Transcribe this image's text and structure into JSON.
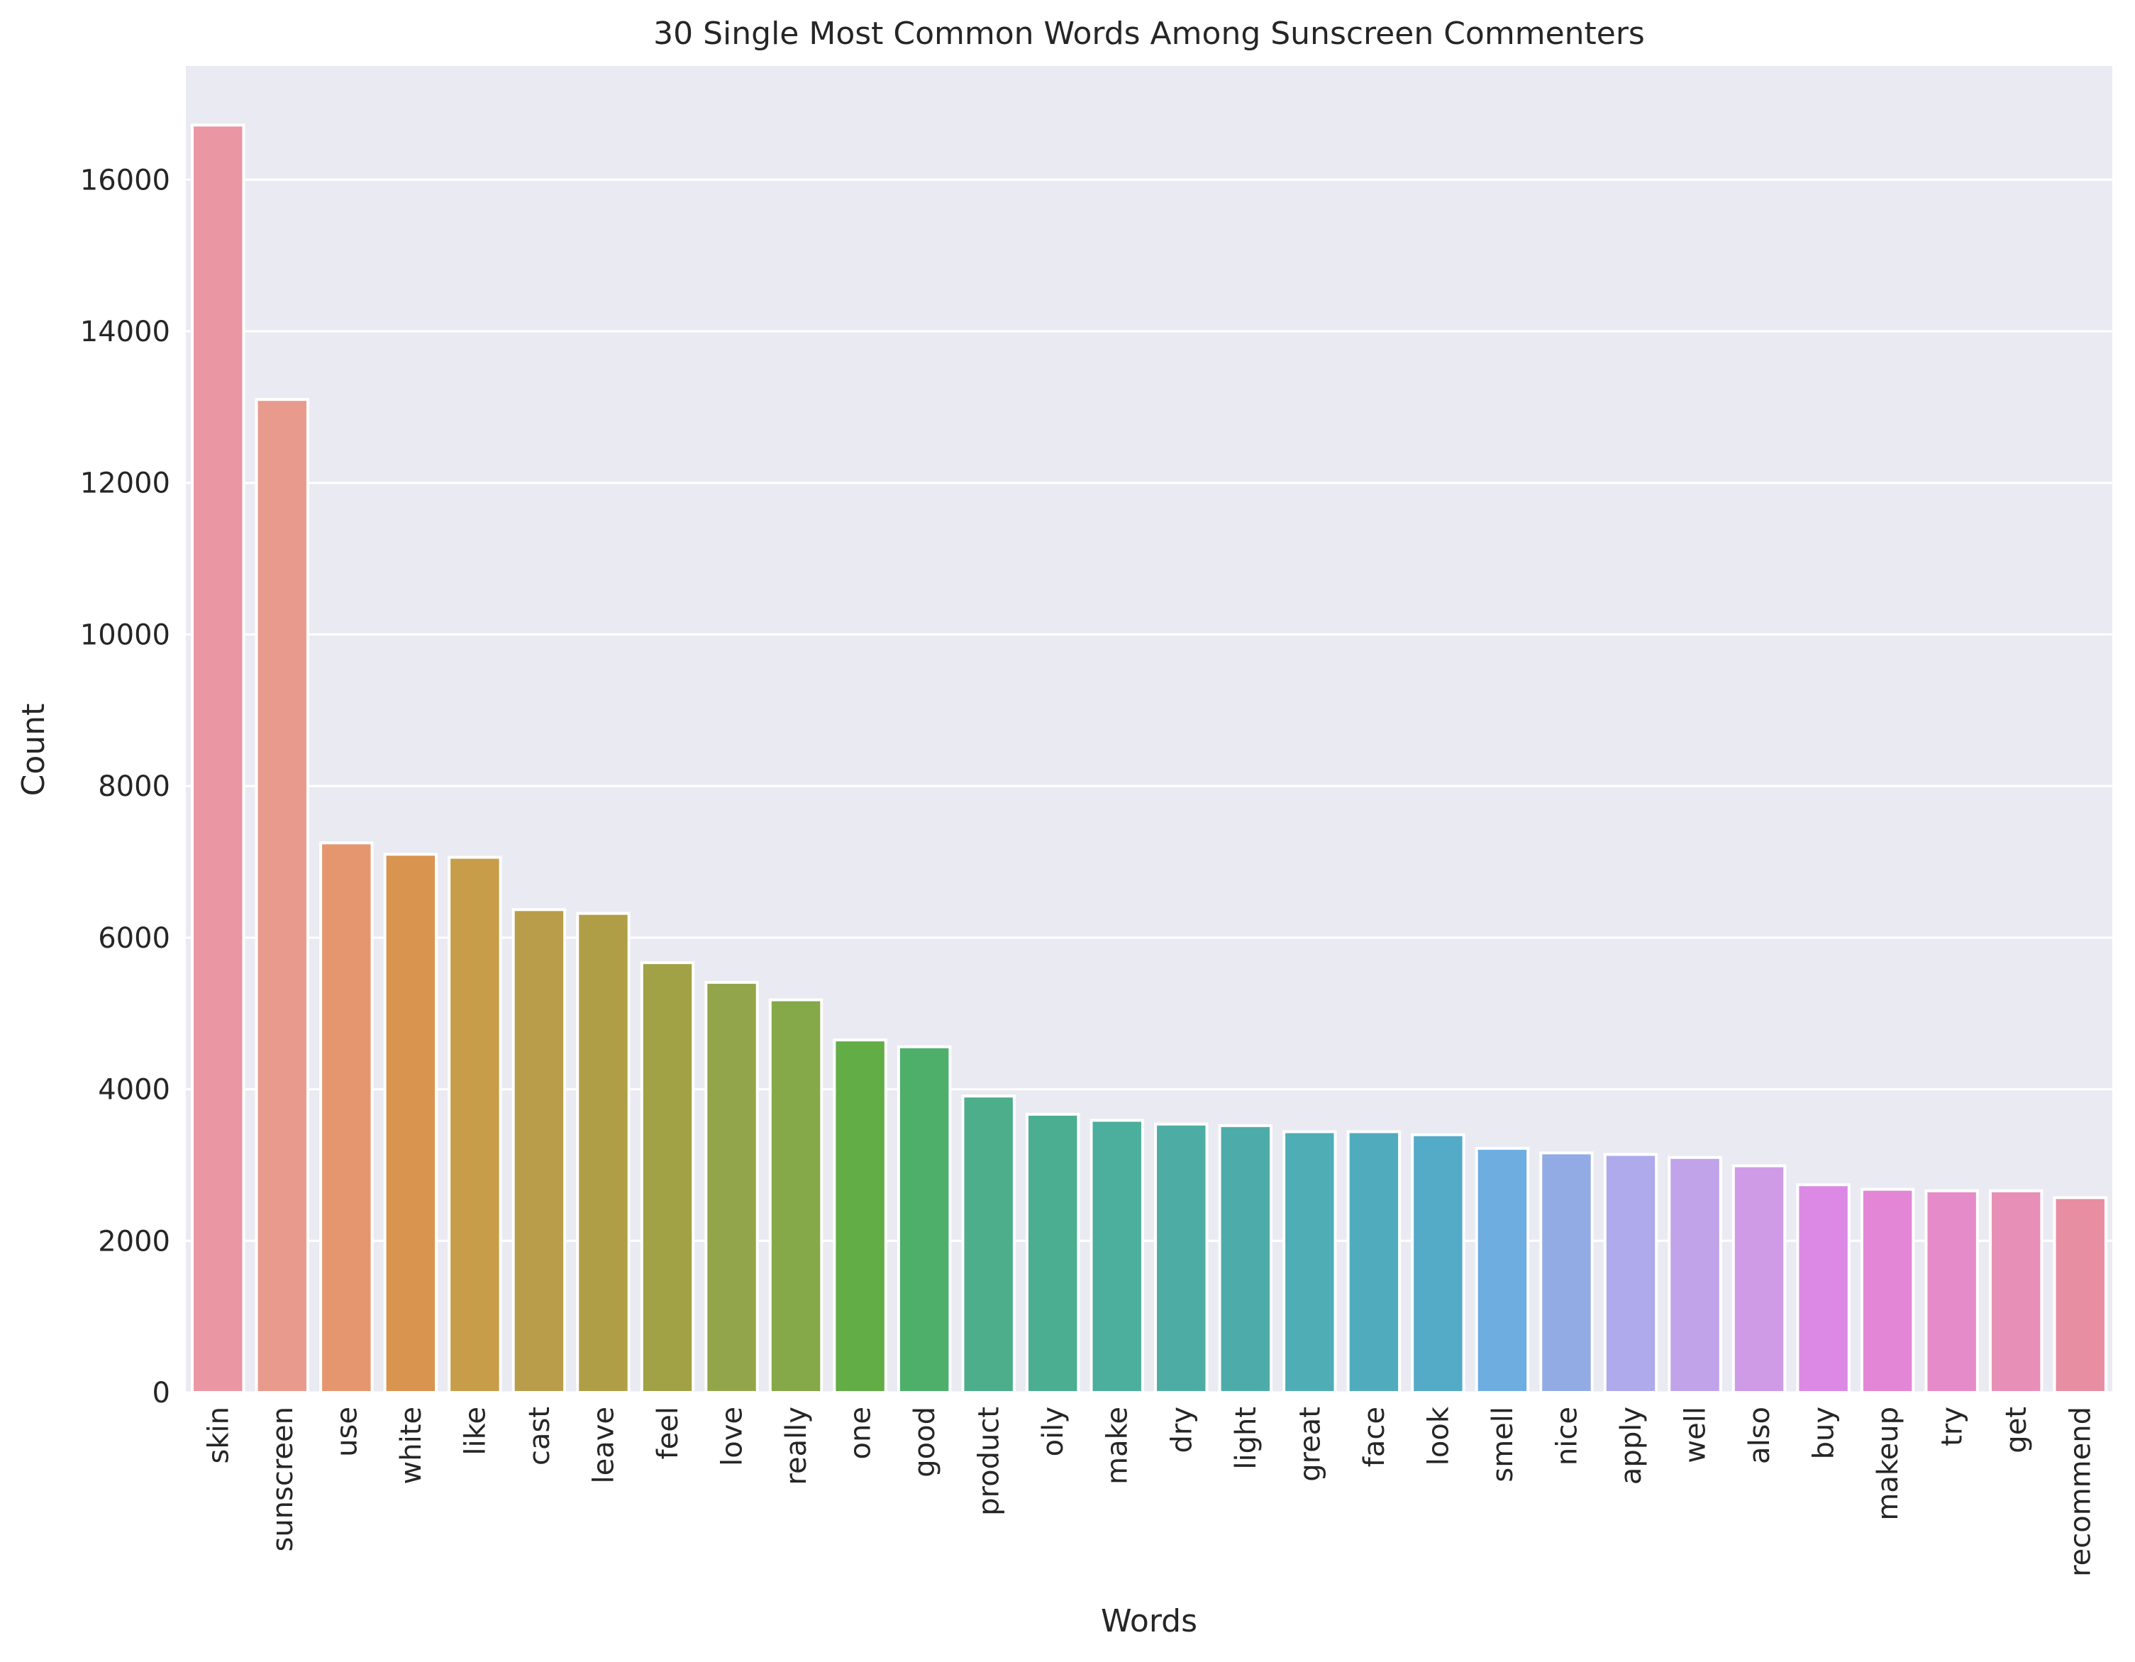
{
  "chart_data": {
    "type": "bar",
    "title": "30 Single Most Common Words Among Sunscreen Commenters",
    "xlabel": "Words",
    "ylabel": "Count",
    "ylim": [
      0,
      17500
    ],
    "yticks": [
      0,
      2000,
      4000,
      6000,
      8000,
      10000,
      12000,
      14000,
      16000
    ],
    "grid": true,
    "legend": "none",
    "categories": [
      "skin",
      "sunscreen",
      "use",
      "white",
      "like",
      "cast",
      "leave",
      "feel",
      "love",
      "really",
      "one",
      "good",
      "product",
      "oily",
      "make",
      "dry",
      "light",
      "great",
      "face",
      "look",
      "smell",
      "nice",
      "apply",
      "well",
      "also",
      "buy",
      "makeup",
      "try",
      "get",
      "recommend"
    ],
    "values": [
      16720,
      13100,
      7250,
      7100,
      7060,
      6370,
      6320,
      5670,
      5410,
      5180,
      4650,
      4560,
      3910,
      3670,
      3590,
      3540,
      3520,
      3440,
      3440,
      3400,
      3220,
      3160,
      3140,
      3100,
      2990,
      2740,
      2680,
      2660,
      2660,
      2570
    ],
    "colors": [
      "#ea96a3",
      "#e89b8d",
      "#e5966e",
      "#d9944f",
      "#c79d4a",
      "#ba9d4a",
      "#b09e47",
      "#a1a146",
      "#93a54a",
      "#85a849",
      "#62ad46",
      "#4daf6a",
      "#4cae8b",
      "#4bae91",
      "#4cae9c",
      "#4dada5",
      "#4daca9",
      "#4faeb5",
      "#50acbc",
      "#53abc7",
      "#6dade0",
      "#93abe4",
      "#aeaaeb",
      "#c1a3ea",
      "#cf9be6",
      "#db89e5",
      "#e386d5",
      "#e68bc9",
      "#e78fb7",
      "#e78ea2"
    ],
    "background_color": "#eaeaf2",
    "grid_color": "#ffffff"
  }
}
